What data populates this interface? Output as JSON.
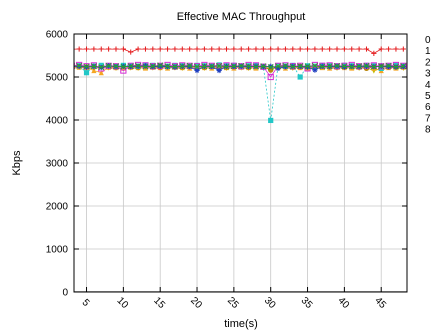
{
  "chart_data": {
    "type": "line",
    "title": "Effective MAC Throughput",
    "xlabel": "time(s)",
    "ylabel": "Kbps",
    "xlim": [
      3.3,
      48.5
    ],
    "ylim": [
      0,
      6000
    ],
    "xticks": [
      5,
      10,
      15,
      20,
      25,
      30,
      35,
      40,
      45
    ],
    "yticks": [
      0,
      1000,
      2000,
      3000,
      4000,
      5000,
      6000
    ],
    "grid": true,
    "legend_position": "right",
    "series": [
      {
        "name": "0",
        "color": "#000000",
        "marker": "none",
        "x": [
          3.3,
          48.5
        ],
        "y": [
          0,
          0
        ]
      },
      {
        "name": "1",
        "color": "#e41a1c",
        "marker": "plus",
        "x": [
          3,
          4,
          5,
          6,
          7,
          8,
          9,
          10,
          11,
          12,
          13,
          14,
          15,
          16,
          17,
          18,
          19,
          20,
          21,
          22,
          23,
          24,
          25,
          26,
          27,
          28,
          29,
          30,
          31,
          32,
          33,
          34,
          35,
          36,
          37,
          38,
          39,
          40,
          41,
          42,
          43,
          44,
          45,
          46,
          47,
          48
        ],
        "y": [
          5650,
          5650,
          5650,
          5650,
          5650,
          5650,
          5650,
          5650,
          5580,
          5650,
          5650,
          5650,
          5650,
          5650,
          5650,
          5650,
          5650,
          5650,
          5650,
          5650,
          5650,
          5650,
          5650,
          5650,
          5650,
          5650,
          5650,
          5650,
          5650,
          5650,
          5650,
          5650,
          5650,
          5650,
          5650,
          5650,
          5650,
          5650,
          5650,
          5650,
          5650,
          5550,
          5650,
          5650,
          5650,
          5650
        ]
      },
      {
        "name": "2",
        "color": "#2ca02c",
        "marker": "x",
        "x": [
          3,
          4,
          5,
          6,
          7,
          8,
          9,
          10,
          11,
          12,
          13,
          14,
          15,
          16,
          17,
          18,
          19,
          20,
          21,
          22,
          23,
          24,
          25,
          26,
          27,
          28,
          29,
          30,
          31,
          32,
          33,
          34,
          35,
          36,
          37,
          38,
          39,
          40,
          41,
          42,
          43,
          44,
          45,
          46,
          47,
          48
        ],
        "y": [
          5250,
          5260,
          5240,
          5250,
          5230,
          5260,
          5250,
          5240,
          5250,
          5260,
          5240,
          5250,
          5270,
          5250,
          5240,
          5250,
          5260,
          5240,
          5250,
          5250,
          5260,
          5240,
          5250,
          5260,
          5250,
          5240,
          5250,
          5230,
          5250,
          5260,
          5240,
          5250,
          5250,
          5260,
          5240,
          5250,
          5260,
          5250,
          5240,
          5250,
          5260,
          5240,
          5250,
          5260,
          5240,
          5250
        ]
      },
      {
        "name": "3",
        "color": "#1f3fbf",
        "marker": "star",
        "x": [
          3,
          4,
          5,
          6,
          7,
          8,
          9,
          10,
          11,
          12,
          13,
          14,
          15,
          16,
          17,
          18,
          19,
          20,
          21,
          22,
          23,
          24,
          25,
          26,
          27,
          28,
          29,
          30,
          31,
          32,
          33,
          34,
          35,
          36,
          37,
          38,
          39,
          40,
          41,
          42,
          43,
          44,
          45,
          46,
          47,
          48
        ],
        "y": [
          5240,
          5250,
          5230,
          5250,
          5220,
          5260,
          5240,
          5250,
          5240,
          5250,
          5260,
          5240,
          5250,
          5240,
          5230,
          5250,
          5240,
          5150,
          5250,
          5240,
          5150,
          5250,
          5240,
          5250,
          5240,
          5250,
          5240,
          5250,
          5200,
          5240,
          5250,
          5240,
          5230,
          5160,
          5250,
          5240,
          5250,
          5230,
          5250,
          5240,
          5250,
          5240,
          5250,
          5240,
          5230,
          5240
        ]
      },
      {
        "name": "4",
        "color": "#d62ad6",
        "marker": "open-square",
        "x": [
          3,
          4,
          5,
          6,
          7,
          8,
          9,
          10,
          11,
          12,
          13,
          14,
          15,
          16,
          17,
          18,
          19,
          20,
          21,
          22,
          23,
          24,
          25,
          26,
          27,
          28,
          29,
          30,
          31,
          32,
          33,
          34,
          35,
          36,
          37,
          38,
          39,
          40,
          41,
          42,
          43,
          44,
          45,
          46,
          47,
          48
        ],
        "y": [
          5260,
          5280,
          5250,
          5270,
          5200,
          5260,
          5250,
          5150,
          5260,
          5280,
          5270,
          5250,
          5260,
          5280,
          5250,
          5270,
          5260,
          5250,
          5280,
          5260,
          5250,
          5270,
          5260,
          5250,
          5280,
          5270,
          5240,
          5000,
          5260,
          5270,
          5250,
          5260,
          5200,
          5280,
          5260,
          5270,
          5250,
          5260,
          5280,
          5250,
          5260,
          5270,
          5250,
          5260,
          5280,
          5260
        ]
      },
      {
        "name": "5",
        "color": "#22c7c7",
        "marker": "filled-square",
        "x": [
          3,
          4,
          5,
          6,
          7,
          8,
          9,
          10,
          11,
          12,
          13,
          14,
          15,
          16,
          17,
          18,
          19,
          20,
          21,
          22,
          23,
          24,
          25,
          26,
          27,
          28,
          29,
          30,
          31,
          32,
          33,
          34,
          35,
          36,
          37,
          38,
          39,
          40,
          41,
          42,
          43,
          44,
          45,
          46,
          47,
          48
        ],
        "y": [
          5280,
          5260,
          5100,
          5250,
          5270,
          5260,
          5250,
          5270,
          5260,
          5250,
          5280,
          5270,
          5260,
          5250,
          5270,
          5260,
          5250,
          5270,
          5260,
          5250,
          5280,
          5260,
          5270,
          5250,
          5260,
          5270,
          5250,
          3990,
          5260,
          5250,
          5270,
          5000,
          5260,
          5250,
          5270,
          5260,
          5250,
          5270,
          5260,
          5250,
          5270,
          5260,
          5200,
          5260,
          5270,
          5250
        ]
      },
      {
        "name": "6",
        "color": "#b8860b",
        "marker": "circle",
        "x": [
          3,
          4,
          5,
          6,
          7,
          8,
          9,
          10,
          11,
          12,
          13,
          14,
          15,
          16,
          17,
          18,
          19,
          20,
          21,
          22,
          23,
          24,
          25,
          26,
          27,
          28,
          29,
          30,
          31,
          32,
          33,
          34,
          35,
          36,
          37,
          38,
          39,
          40,
          41,
          42,
          43,
          44,
          45,
          46,
          47,
          48
        ],
        "y": [
          5230,
          5250,
          5240,
          5230,
          5250,
          5240,
          5230,
          5250,
          5240,
          5230,
          5250,
          5240,
          5230,
          5250,
          5240,
          5230,
          5250,
          5240,
          5230,
          5250,
          5240,
          5230,
          5250,
          5240,
          5230,
          5250,
          5240,
          5160,
          5250,
          5240,
          5230,
          5250,
          5240,
          5230,
          5250,
          5240,
          5230,
          5250,
          5240,
          5230,
          5200,
          5240,
          5250,
          5230,
          5240,
          5250
        ]
      },
      {
        "name": "7",
        "color": "#f5a623",
        "marker": "triangle",
        "x": [
          3,
          4,
          5,
          6,
          7,
          8,
          9,
          10,
          11,
          12,
          13,
          14,
          15,
          16,
          17,
          18,
          19,
          20,
          21,
          22,
          23,
          24,
          25,
          26,
          27,
          28,
          29,
          30,
          31,
          32,
          33,
          34,
          35,
          36,
          37,
          38,
          39,
          40,
          41,
          42,
          43,
          44,
          45,
          46,
          47,
          48
        ],
        "y": [
          5210,
          5230,
          5220,
          5150,
          5100,
          5230,
          5220,
          5210,
          5230,
          5220,
          5210,
          5230,
          5220,
          5210,
          5230,
          5220,
          5210,
          5230,
          5220,
          5210,
          5230,
          5220,
          5210,
          5230,
          5220,
          5210,
          5230,
          5200,
          5220,
          5210,
          5230,
          5220,
          5210,
          5230,
          5220,
          5210,
          5230,
          5220,
          5210,
          5230,
          5220,
          5210,
          5150,
          5220,
          5210,
          5230
        ]
      },
      {
        "name": "8",
        "color": "#c4b800",
        "marker": "inverted-triangle",
        "x": [
          3,
          4,
          5,
          6,
          7,
          8,
          9,
          10,
          11,
          12,
          13,
          14,
          15,
          16,
          17,
          18,
          19,
          20,
          21,
          22,
          23,
          24,
          25,
          26,
          27,
          28,
          29,
          30,
          31,
          32,
          33,
          34,
          35,
          36,
          37,
          38,
          39,
          40,
          41,
          42,
          43,
          44,
          45,
          46,
          47,
          48
        ],
        "y": [
          5200,
          5220,
          5210,
          5200,
          5220,
          5210,
          5200,
          5220,
          5210,
          5200,
          5220,
          5210,
          5200,
          5220,
          5210,
          5200,
          5220,
          5210,
          5200,
          5220,
          5210,
          5200,
          5220,
          5210,
          5200,
          5220,
          5210,
          5190,
          5220,
          5210,
          5200,
          5220,
          5210,
          5200,
          5220,
          5210,
          5200,
          5220,
          5210,
          5200,
          5220,
          5140,
          5200,
          5220,
          5210,
          5200
        ]
      }
    ]
  }
}
